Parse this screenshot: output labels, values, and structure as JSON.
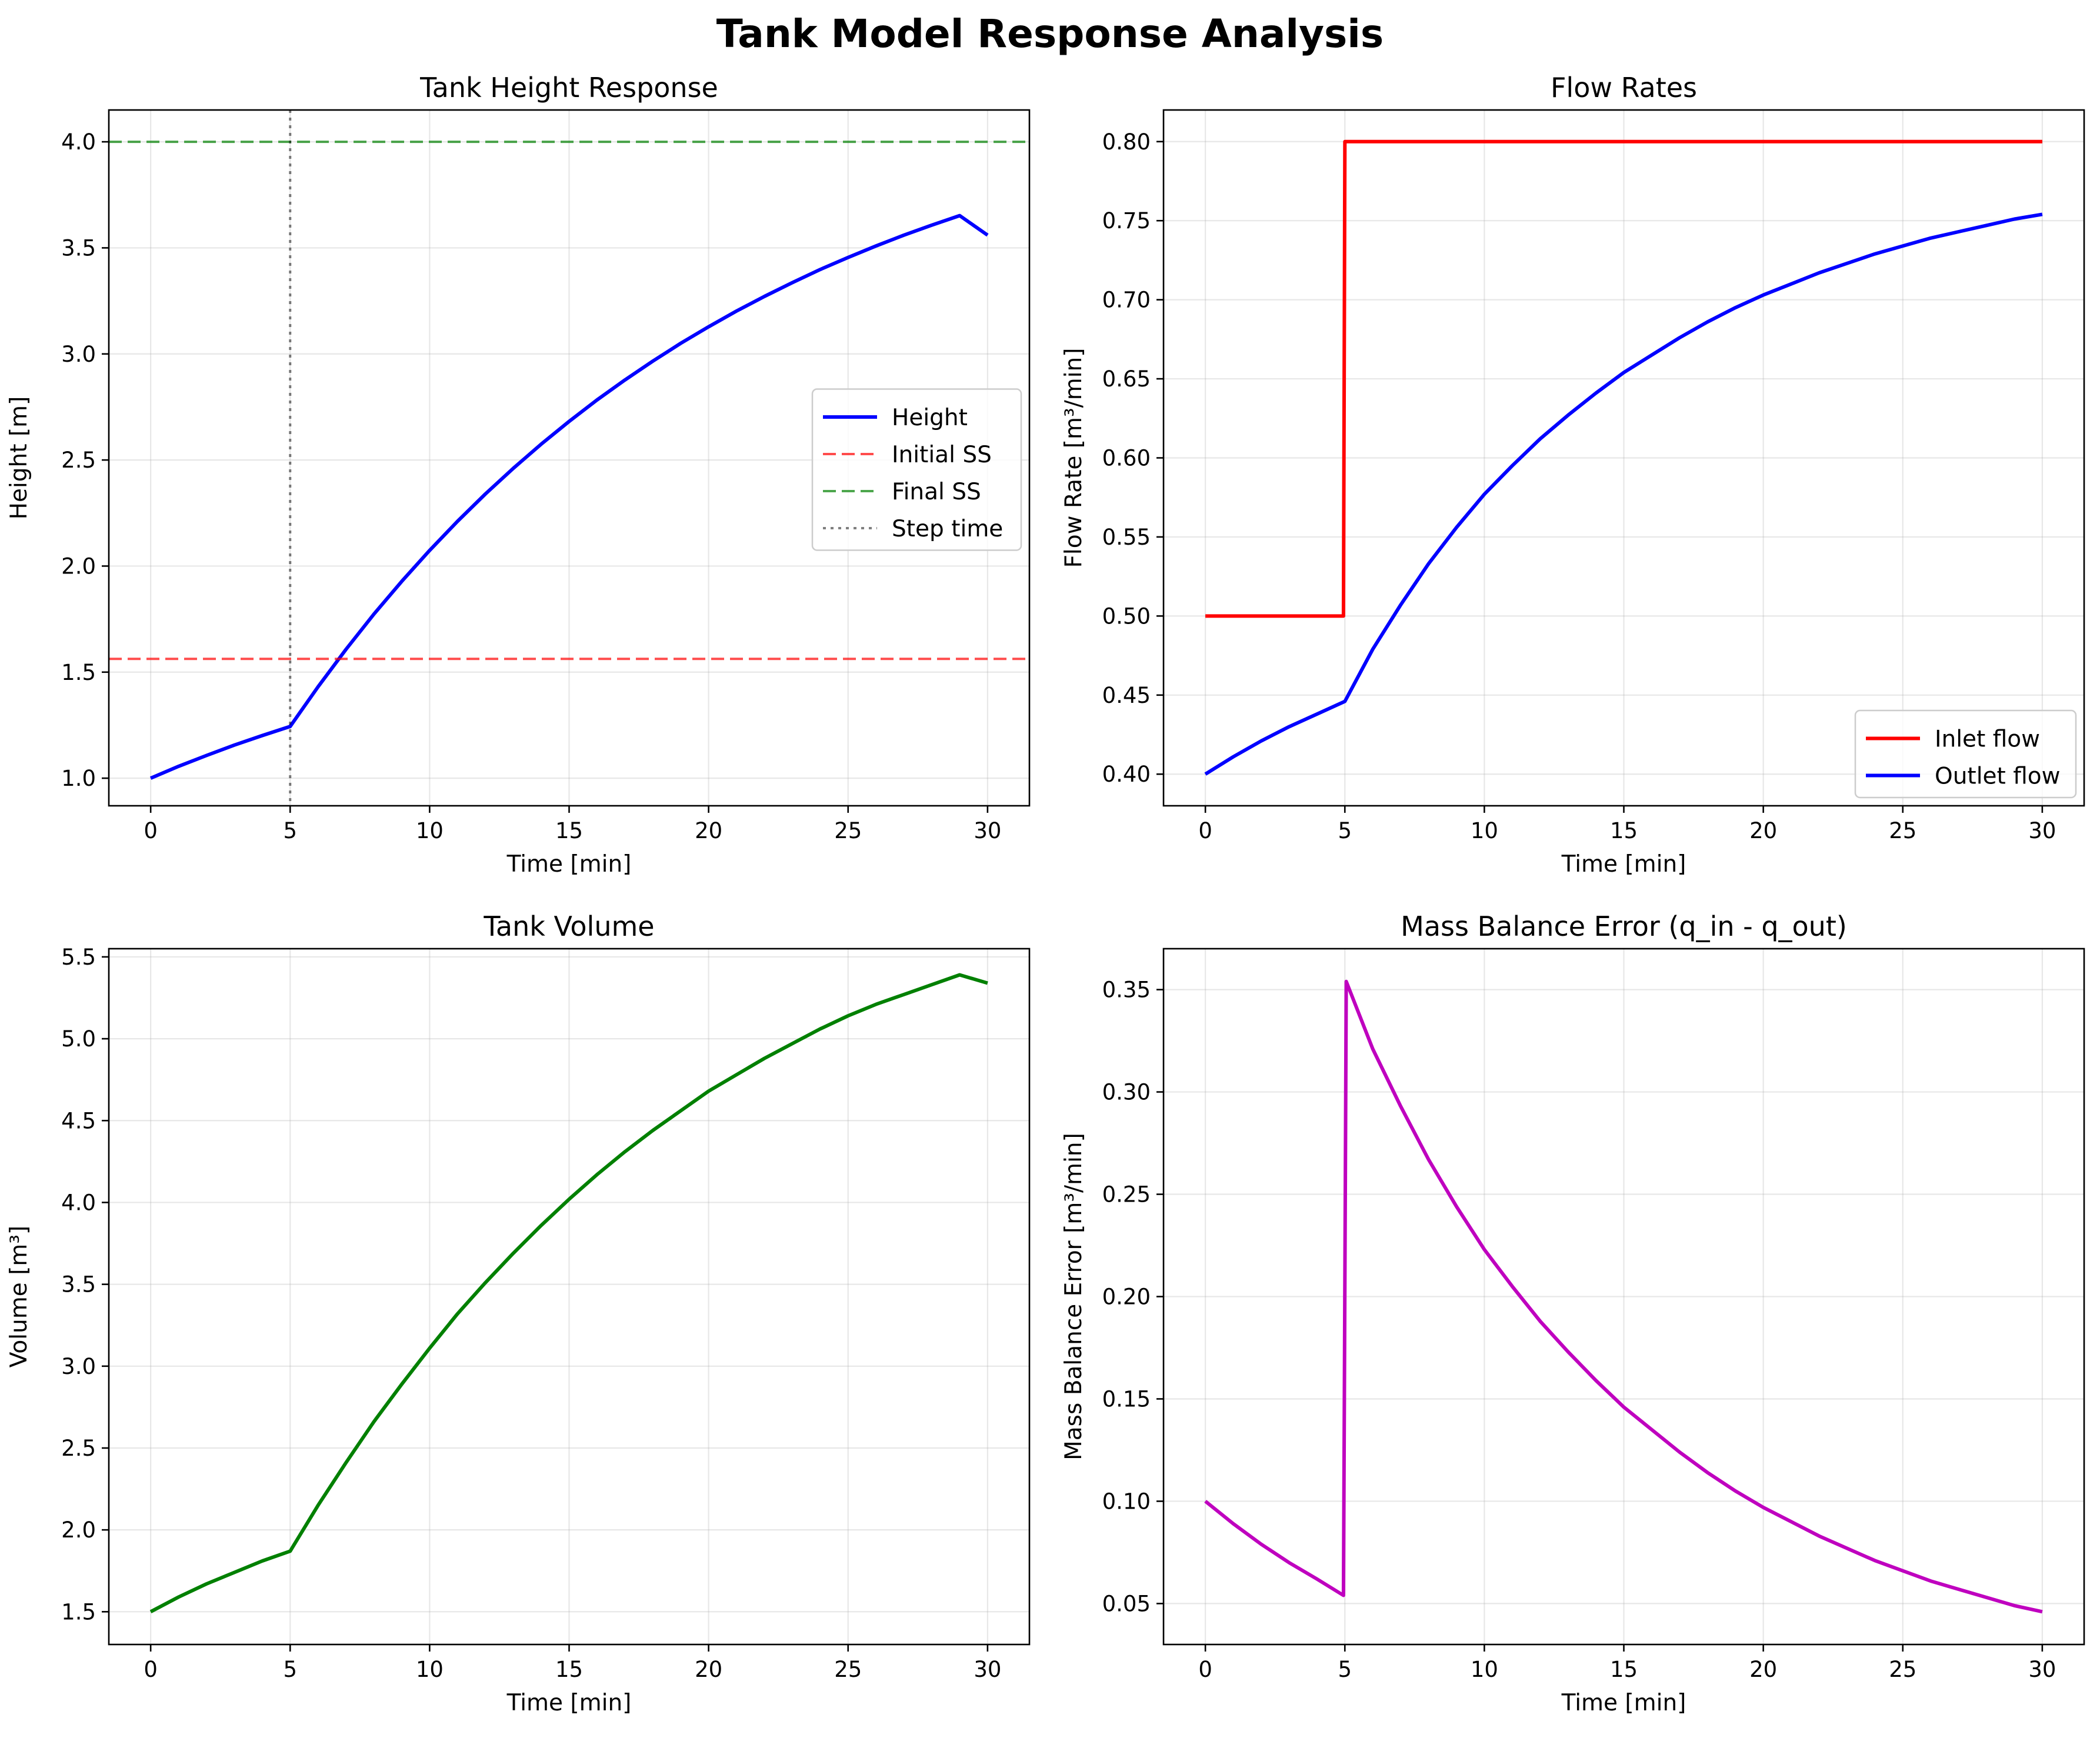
{
  "suptitle": "Tank Model Response Analysis",
  "chart_data": [
    {
      "type": "line",
      "title": "Tank Height Response",
      "xlabel": "Time [min]",
      "ylabel": "Height [m]",
      "xlim": [
        -1.5,
        31.5
      ],
      "ylim": [
        0.87,
        4.15
      ],
      "xticks": [
        0,
        5,
        10,
        15,
        20,
        25,
        30
      ],
      "yticks": [
        1.0,
        1.5,
        2.0,
        2.5,
        3.0,
        3.5,
        4.0
      ],
      "ytick_decimals": 1,
      "grid": true,
      "legend": "center-right",
      "series": [
        {
          "name": "Height",
          "color": "#0000ff",
          "style": "solid",
          "points": [
            [
              0,
              1.0
            ],
            [
              1,
              1.056
            ],
            [
              2,
              1.107
            ],
            [
              3,
              1.156
            ],
            [
              4,
              1.201
            ],
            [
              5,
              1.244
            ],
            [
              6,
              1.431
            ],
            [
              7,
              1.607
            ],
            [
              8,
              1.773
            ],
            [
              9,
              1.928
            ],
            [
              10,
              2.074
            ],
            [
              11,
              2.211
            ],
            [
              12,
              2.34
            ],
            [
              13,
              2.461
            ],
            [
              14,
              2.575
            ],
            [
              15,
              2.682
            ],
            [
              16,
              2.783
            ],
            [
              17,
              2.877
            ],
            [
              18,
              2.966
            ],
            [
              19,
              3.05
            ],
            [
              20,
              3.128
            ],
            [
              21,
              3.202
            ],
            [
              22,
              3.271
            ],
            [
              23,
              3.336
            ],
            [
              24,
              3.398
            ],
            [
              25,
              3.455
            ],
            [
              26,
              3.509
            ],
            [
              27,
              3.56
            ],
            [
              28,
              3.607
            ],
            [
              29,
              3.652
            ],
            [
              30,
              3.56
            ]
          ]
        },
        {
          "name": "Initial SS",
          "color": "#ff0000",
          "style": "dashed",
          "hline": 1.5625
        },
        {
          "name": "Final SS",
          "color": "#008000",
          "style": "dashed",
          "hline": 4.0
        },
        {
          "name": "Step time",
          "color": "#000000",
          "style": "dotted",
          "vline": 5
        }
      ]
    },
    {
      "type": "line",
      "title": "Flow Rates",
      "xlabel": "Time [min]",
      "ylabel": "Flow Rate [m³/min]",
      "xlim": [
        -1.5,
        31.5
      ],
      "ylim": [
        0.38,
        0.82
      ],
      "xticks": [
        0,
        5,
        10,
        15,
        20,
        25,
        30
      ],
      "yticks": [
        0.4,
        0.45,
        0.5,
        0.55,
        0.6,
        0.65,
        0.7,
        0.75,
        0.8
      ],
      "ytick_decimals": 2,
      "grid": true,
      "legend": "lower-right",
      "series": [
        {
          "name": "Inlet flow",
          "color": "#ff0000",
          "style": "solid",
          "points": [
            [
              0,
              0.5
            ],
            [
              4.95,
              0.5
            ],
            [
              5.0,
              0.8
            ],
            [
              30,
              0.8
            ]
          ]
        },
        {
          "name": "Outlet flow",
          "color": "#0000ff",
          "style": "solid",
          "points": [
            [
              0,
              0.4
            ],
            [
              1,
              0.411
            ],
            [
              2,
              0.421
            ],
            [
              3,
              0.43
            ],
            [
              4,
              0.438
            ],
            [
              5,
              0.446
            ],
            [
              6,
              0.479
            ],
            [
              7,
              0.507
            ],
            [
              8,
              0.533
            ],
            [
              9,
              0.556
            ],
            [
              10,
              0.577
            ],
            [
              11,
              0.595
            ],
            [
              12,
              0.612
            ],
            [
              13,
              0.627
            ],
            [
              14,
              0.641
            ],
            [
              15,
              0.654
            ],
            [
              16,
              0.665
            ],
            [
              17,
              0.676
            ],
            [
              18,
              0.686
            ],
            [
              19,
              0.695
            ],
            [
              20,
              0.703
            ],
            [
              21,
              0.71
            ],
            [
              22,
              0.717
            ],
            [
              23,
              0.723
            ],
            [
              24,
              0.729
            ],
            [
              25,
              0.734
            ],
            [
              26,
              0.739
            ],
            [
              27,
              0.743
            ],
            [
              28,
              0.747
            ],
            [
              29,
              0.751
            ],
            [
              30,
              0.754
            ]
          ]
        }
      ]
    },
    {
      "type": "line",
      "title": "Tank Volume",
      "xlabel": "Time [min]",
      "ylabel": "Volume [m³]",
      "xlim": [
        -1.5,
        31.5
      ],
      "ylim": [
        1.3,
        5.55
      ],
      "xticks": [
        0,
        5,
        10,
        15,
        20,
        25,
        30
      ],
      "yticks": [
        1.5,
        2.0,
        2.5,
        3.0,
        3.5,
        4.0,
        4.5,
        5.0,
        5.5
      ],
      "ytick_decimals": 1,
      "grid": true,
      "series": [
        {
          "name": "",
          "color": "#008000",
          "style": "solid",
          "points": [
            [
              0,
              1.5
            ],
            [
              1,
              1.59
            ],
            [
              2,
              1.67
            ],
            [
              3,
              1.74
            ],
            [
              4,
              1.81
            ],
            [
              5,
              1.87
            ],
            [
              6,
              2.15
            ],
            [
              7,
              2.41
            ],
            [
              8,
              2.66
            ],
            [
              9,
              2.89
            ],
            [
              10,
              3.11
            ],
            [
              11,
              3.32
            ],
            [
              12,
              3.51
            ],
            [
              13,
              3.69
            ],
            [
              14,
              3.86
            ],
            [
              15,
              4.02
            ],
            [
              16,
              4.17
            ],
            [
              17,
              4.31
            ],
            [
              18,
              4.44
            ],
            [
              19,
              4.56
            ],
            [
              20,
              4.68
            ],
            [
              21,
              4.78
            ],
            [
              22,
              4.88
            ],
            [
              23,
              4.97
            ],
            [
              24,
              5.06
            ],
            [
              25,
              5.14
            ],
            [
              26,
              5.21
            ],
            [
              27,
              5.27
            ],
            [
              28,
              5.33
            ],
            [
              29,
              5.39
            ],
            [
              30,
              5.34
            ]
          ]
        }
      ]
    },
    {
      "type": "line",
      "title": "Mass Balance Error (q_in - q_out)",
      "xlabel": "Time [min]",
      "ylabel": "Mass Balance Error [m³/min]",
      "xlim": [
        -1.5,
        31.5
      ],
      "ylim": [
        0.03,
        0.37
      ],
      "xticks": [
        0,
        5,
        10,
        15,
        20,
        25,
        30
      ],
      "yticks": [
        0.05,
        0.1,
        0.15,
        0.2,
        0.25,
        0.3,
        0.35
      ],
      "ytick_decimals": 2,
      "grid": true,
      "series": [
        {
          "name": "",
          "color": "#bf00bf",
          "style": "solid",
          "points": [
            [
              0,
              0.1
            ],
            [
              1,
              0.089
            ],
            [
              2,
              0.079
            ],
            [
              3,
              0.07
            ],
            [
              4,
              0.062
            ],
            [
              4.95,
              0.054
            ],
            [
              5.05,
              0.354
            ],
            [
              6,
              0.321
            ],
            [
              7,
              0.293
            ],
            [
              8,
              0.267
            ],
            [
              9,
              0.244
            ],
            [
              10,
              0.223
            ],
            [
              11,
              0.205
            ],
            [
              12,
              0.188
            ],
            [
              13,
              0.173
            ],
            [
              14,
              0.159
            ],
            [
              15,
              0.146
            ],
            [
              16,
              0.135
            ],
            [
              17,
              0.124
            ],
            [
              18,
              0.114
            ],
            [
              19,
              0.105
            ],
            [
              20,
              0.097
            ],
            [
              21,
              0.09
            ],
            [
              22,
              0.083
            ],
            [
              23,
              0.077
            ],
            [
              24,
              0.071
            ],
            [
              25,
              0.066
            ],
            [
              26,
              0.061
            ],
            [
              27,
              0.057
            ],
            [
              28,
              0.053
            ],
            [
              29,
              0.049
            ],
            [
              30,
              0.046
            ]
          ]
        }
      ]
    }
  ]
}
